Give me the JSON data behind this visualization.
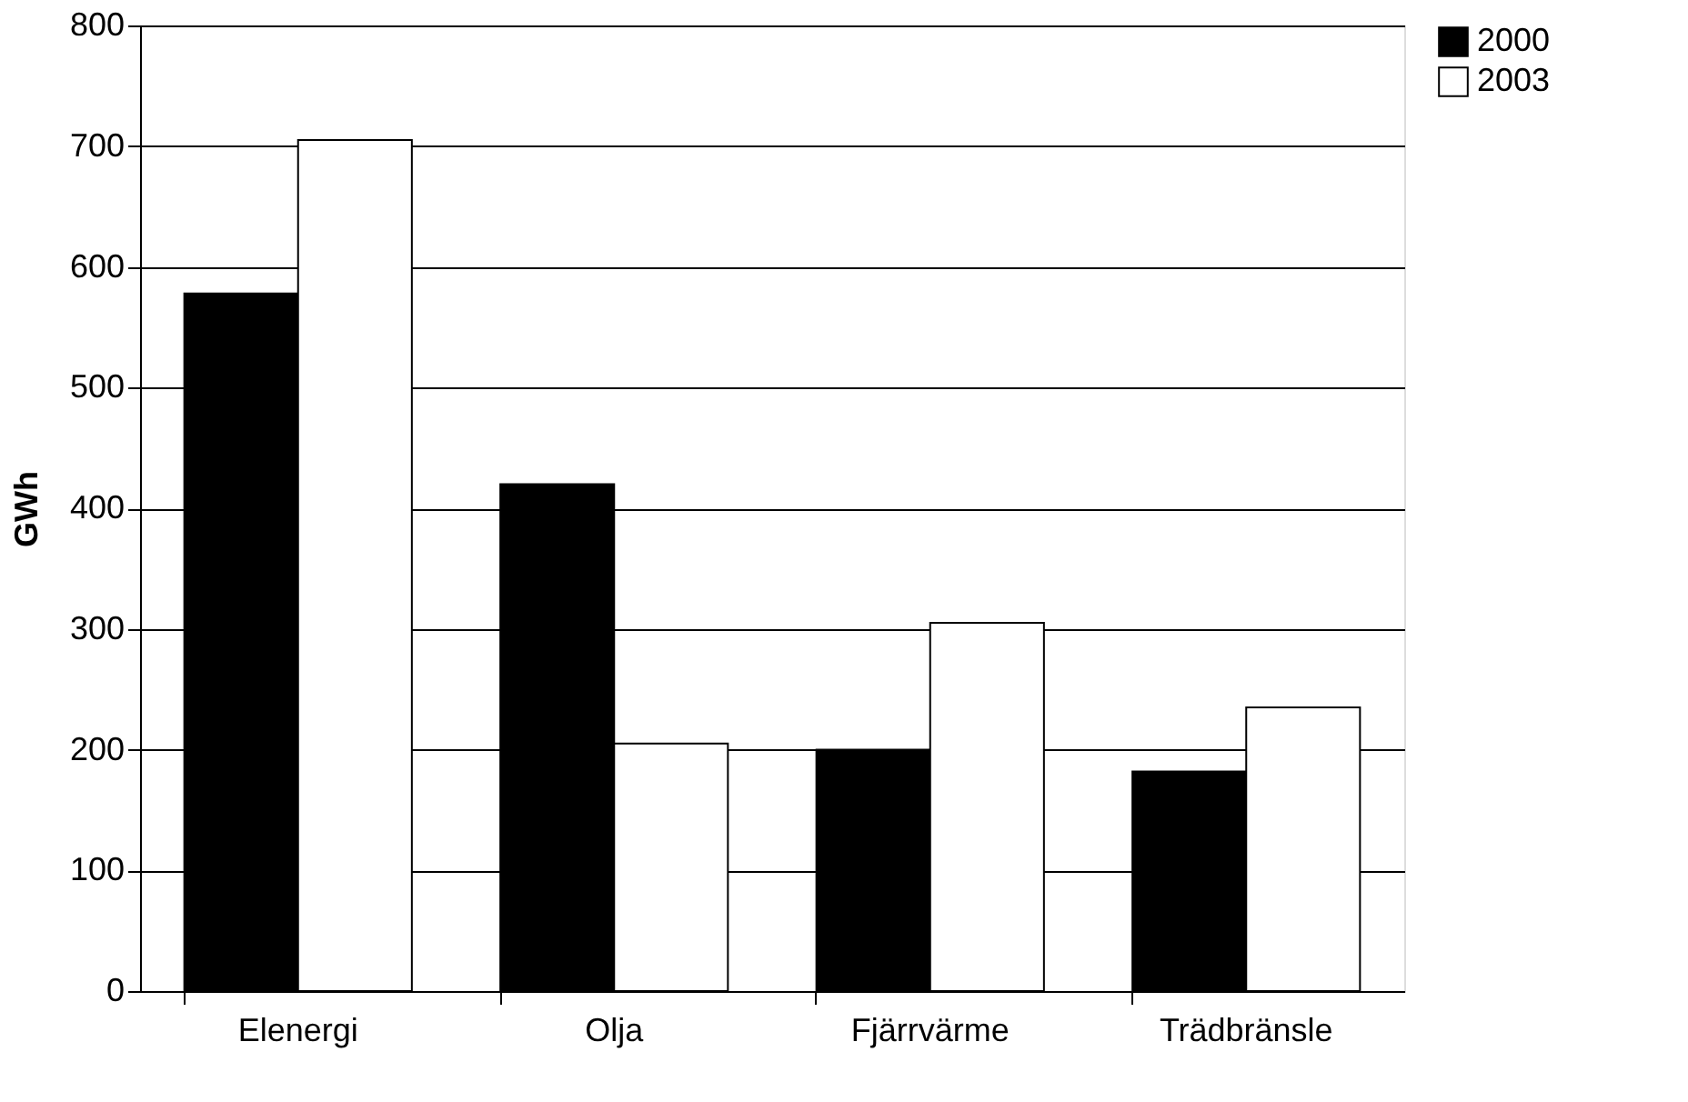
{
  "chart_data": {
    "type": "bar",
    "ylabel": "GWh",
    "categories": [
      "Elenergi",
      "Olja",
      "Fjärrvärme",
      "Trädbränsle"
    ],
    "series": [
      {
        "name": "2000",
        "color": "#000000",
        "values": [
          578,
          420,
          200,
          182
        ]
      },
      {
        "name": "2003",
        "color": "#ffffff",
        "values": [
          705,
          205,
          305,
          235
        ]
      }
    ],
    "ylim": [
      0,
      800
    ],
    "yticks": [
      0,
      100,
      200,
      300,
      400,
      500,
      600,
      700,
      800
    ],
    "grid": "y",
    "legend": "right"
  }
}
